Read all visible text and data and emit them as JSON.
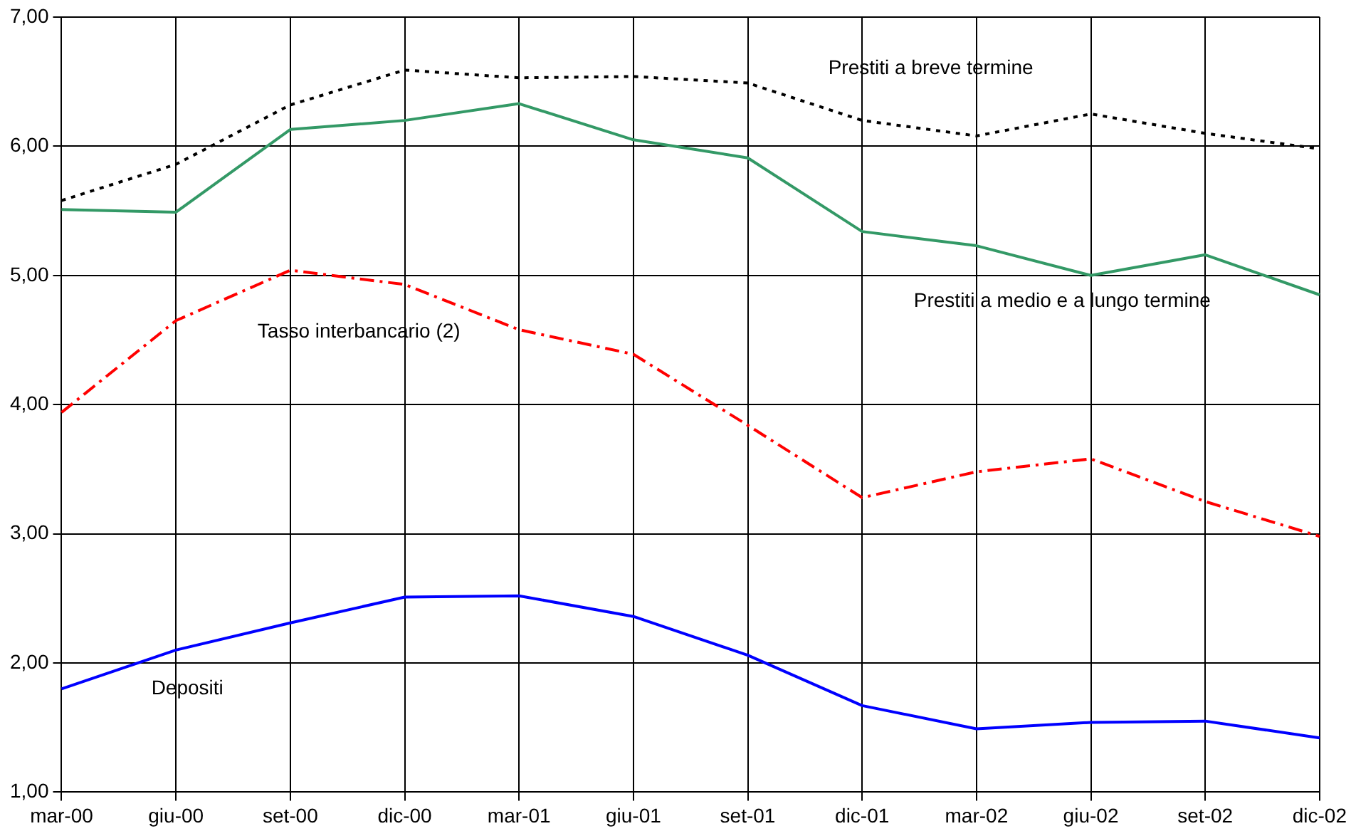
{
  "chart_data": {
    "type": "line",
    "categories": [
      "mar-00",
      "giu-00",
      "set-00",
      "dic-00",
      "mar-01",
      "giu-01",
      "set-01",
      "dic-01",
      "mar-02",
      "giu-02",
      "set-02",
      "dic-02"
    ],
    "series": [
      {
        "name": "Prestiti a breve termine",
        "color": "#000000",
        "line_style": "dotted",
        "values": [
          5.58,
          5.86,
          6.32,
          6.59,
          6.53,
          6.54,
          6.49,
          6.2,
          6.08,
          6.25,
          6.1,
          5.98
        ]
      },
      {
        "name": "Prestiti a medio e a lungo termine",
        "color": "#339966",
        "line_style": "solid",
        "values": [
          5.51,
          5.49,
          6.13,
          6.2,
          6.33,
          6.05,
          5.91,
          5.34,
          5.23,
          5.0,
          5.16,
          4.85
        ]
      },
      {
        "name": "Tasso interbancario (2)",
        "color": "#ff0000",
        "line_style": "dashed",
        "values": [
          3.94,
          4.65,
          5.04,
          4.93,
          4.58,
          4.39,
          3.84,
          3.28,
          3.48,
          3.58,
          3.25,
          2.98
        ]
      },
      {
        "name": "Depositi",
        "color": "#0000ff",
        "line_style": "solid",
        "values": [
          1.8,
          2.1,
          2.31,
          2.51,
          2.52,
          2.36,
          2.06,
          1.67,
          1.49,
          1.54,
          1.55,
          1.42
        ]
      }
    ],
    "ylim": [
      1,
      7
    ],
    "yticks": [
      {
        "value": 1,
        "label": "1,00"
      },
      {
        "value": 2,
        "label": "2,00"
      },
      {
        "value": 3,
        "label": "3,00"
      },
      {
        "value": 4,
        "label": "4,00"
      },
      {
        "value": 5,
        "label": "5,00"
      },
      {
        "value": 6,
        "label": "6,00"
      },
      {
        "value": 7,
        "label": "7,00"
      }
    ],
    "grid": true,
    "legend": false,
    "marker": "none"
  }
}
